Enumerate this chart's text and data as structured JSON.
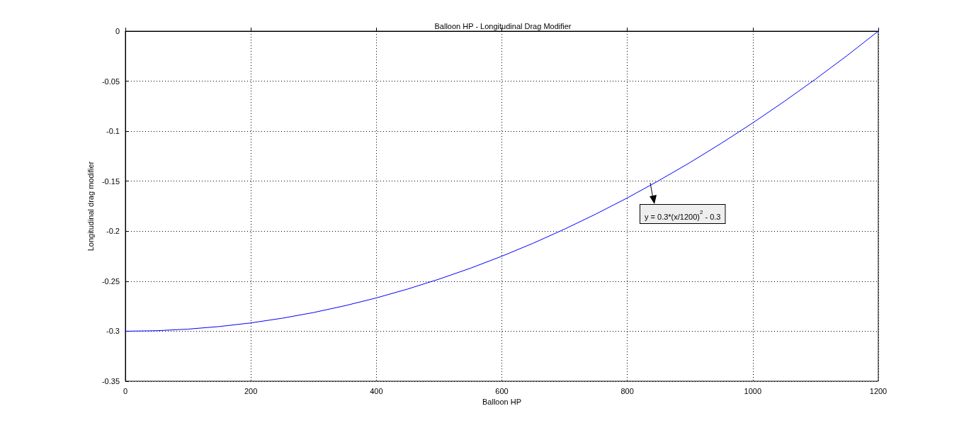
{
  "chart_data": {
    "type": "line",
    "title": "Balloon HP - Longitudinal Drag Modifier",
    "xlabel": "Balloon HP",
    "ylabel": "Longitudinal drag modifier",
    "x": [
      0,
      50,
      100,
      150,
      200,
      250,
      300,
      350,
      400,
      450,
      500,
      550,
      600,
      650,
      700,
      750,
      800,
      850,
      900,
      950,
      1000,
      1050,
      1100,
      1150,
      1200
    ],
    "series": [
      {
        "color": "#0000ff",
        "values": [
          -0.3,
          -0.2995,
          -0.2979,
          -0.2953,
          -0.2917,
          -0.287,
          -0.2813,
          -0.2745,
          -0.2667,
          -0.2578,
          -0.2479,
          -0.237,
          -0.225,
          -0.212,
          -0.1979,
          -0.1828,
          -0.1667,
          -0.1495,
          -0.1313,
          -0.112,
          -0.0917,
          -0.0703,
          -0.0479,
          -0.0245,
          0
        ]
      }
    ],
    "xlim": [
      0,
      1200
    ],
    "xticks": [
      0,
      200,
      400,
      600,
      800,
      1000,
      1200
    ],
    "ylim": [
      -0.35,
      0
    ],
    "yticks": [
      -0.35,
      -0.3,
      -0.25,
      -0.2,
      -0.15,
      -0.1,
      -0.05,
      0
    ],
    "grid": true,
    "marker": "none",
    "line_style": "solid",
    "annotations": [
      "y = 0.3*(x/1200)$^{2}$ - 0.3"
    ]
  }
}
